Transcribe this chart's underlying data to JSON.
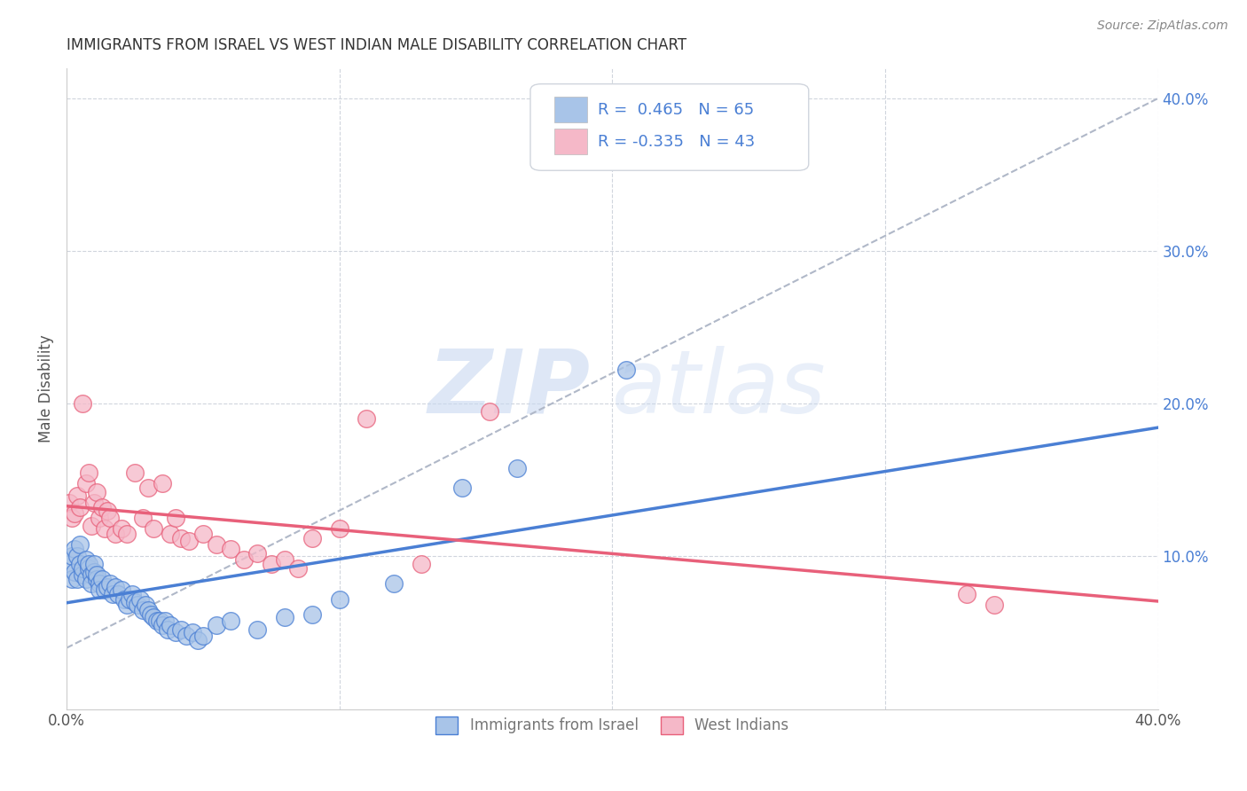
{
  "title": "IMMIGRANTS FROM ISRAEL VS WEST INDIAN MALE DISABILITY CORRELATION CHART",
  "source": "Source: ZipAtlas.com",
  "ylabel": "Male Disability",
  "xlim": [
    0.0,
    0.4
  ],
  "ylim": [
    0.0,
    0.42
  ],
  "x_ticks": [
    0.0,
    0.1,
    0.2,
    0.3,
    0.4
  ],
  "x_tick_labels": [
    "0.0%",
    "",
    "",
    "",
    "40.0%"
  ],
  "y_ticks_right": [
    0.1,
    0.2,
    0.3,
    0.4
  ],
  "y_tick_labels_right": [
    "10.0%",
    "20.0%",
    "30.0%",
    "40.0%"
  ],
  "legend_label1": "Immigrants from Israel",
  "legend_label2": "West Indians",
  "r1": 0.465,
  "n1": 65,
  "r2": -0.335,
  "n2": 43,
  "color_blue": "#a8c4e8",
  "color_pink": "#f5b8c8",
  "color_blue_line": "#4a7fd4",
  "color_pink_line": "#e8607a",
  "color_blue_text": "#4a7fd4",
  "color_pink_text": "#e8607a",
  "watermark_zip": "ZIP",
  "watermark_atlas": "atlas",
  "blue_scatter_x": [
    0.001,
    0.002,
    0.002,
    0.003,
    0.003,
    0.004,
    0.004,
    0.005,
    0.005,
    0.006,
    0.006,
    0.007,
    0.007,
    0.008,
    0.008,
    0.009,
    0.009,
    0.01,
    0.01,
    0.011,
    0.011,
    0.012,
    0.012,
    0.013,
    0.014,
    0.015,
    0.016,
    0.017,
    0.018,
    0.019,
    0.02,
    0.021,
    0.022,
    0.023,
    0.024,
    0.025,
    0.026,
    0.027,
    0.028,
    0.029,
    0.03,
    0.031,
    0.032,
    0.033,
    0.034,
    0.035,
    0.036,
    0.037,
    0.038,
    0.04,
    0.042,
    0.044,
    0.046,
    0.048,
    0.05,
    0.055,
    0.06,
    0.07,
    0.08,
    0.09,
    0.1,
    0.12,
    0.145,
    0.165,
    0.205
  ],
  "blue_scatter_y": [
    0.095,
    0.1,
    0.085,
    0.105,
    0.09,
    0.1,
    0.085,
    0.095,
    0.108,
    0.088,
    0.092,
    0.098,
    0.085,
    0.092,
    0.095,
    0.088,
    0.082,
    0.09,
    0.095,
    0.085,
    0.088,
    0.082,
    0.078,
    0.085,
    0.078,
    0.08,
    0.082,
    0.075,
    0.08,
    0.075,
    0.078,
    0.072,
    0.068,
    0.072,
    0.075,
    0.07,
    0.068,
    0.072,
    0.065,
    0.068,
    0.065,
    0.062,
    0.06,
    0.058,
    0.058,
    0.055,
    0.058,
    0.052,
    0.055,
    0.05,
    0.052,
    0.048,
    0.05,
    0.045,
    0.048,
    0.055,
    0.058,
    0.052,
    0.06,
    0.062,
    0.072,
    0.082,
    0.145,
    0.158,
    0.222
  ],
  "pink_scatter_x": [
    0.001,
    0.002,
    0.003,
    0.004,
    0.005,
    0.006,
    0.007,
    0.008,
    0.009,
    0.01,
    0.011,
    0.012,
    0.013,
    0.014,
    0.015,
    0.016,
    0.018,
    0.02,
    0.022,
    0.025,
    0.028,
    0.03,
    0.032,
    0.035,
    0.038,
    0.04,
    0.042,
    0.045,
    0.05,
    0.055,
    0.06,
    0.065,
    0.07,
    0.075,
    0.08,
    0.085,
    0.09,
    0.1,
    0.11,
    0.13,
    0.155,
    0.33,
    0.34
  ],
  "pink_scatter_y": [
    0.135,
    0.125,
    0.128,
    0.14,
    0.132,
    0.2,
    0.148,
    0.155,
    0.12,
    0.135,
    0.142,
    0.125,
    0.132,
    0.118,
    0.13,
    0.125,
    0.115,
    0.118,
    0.115,
    0.155,
    0.125,
    0.145,
    0.118,
    0.148,
    0.115,
    0.125,
    0.112,
    0.11,
    0.115,
    0.108,
    0.105,
    0.098,
    0.102,
    0.095,
    0.098,
    0.092,
    0.112,
    0.118,
    0.19,
    0.095,
    0.195,
    0.075,
    0.068
  ]
}
